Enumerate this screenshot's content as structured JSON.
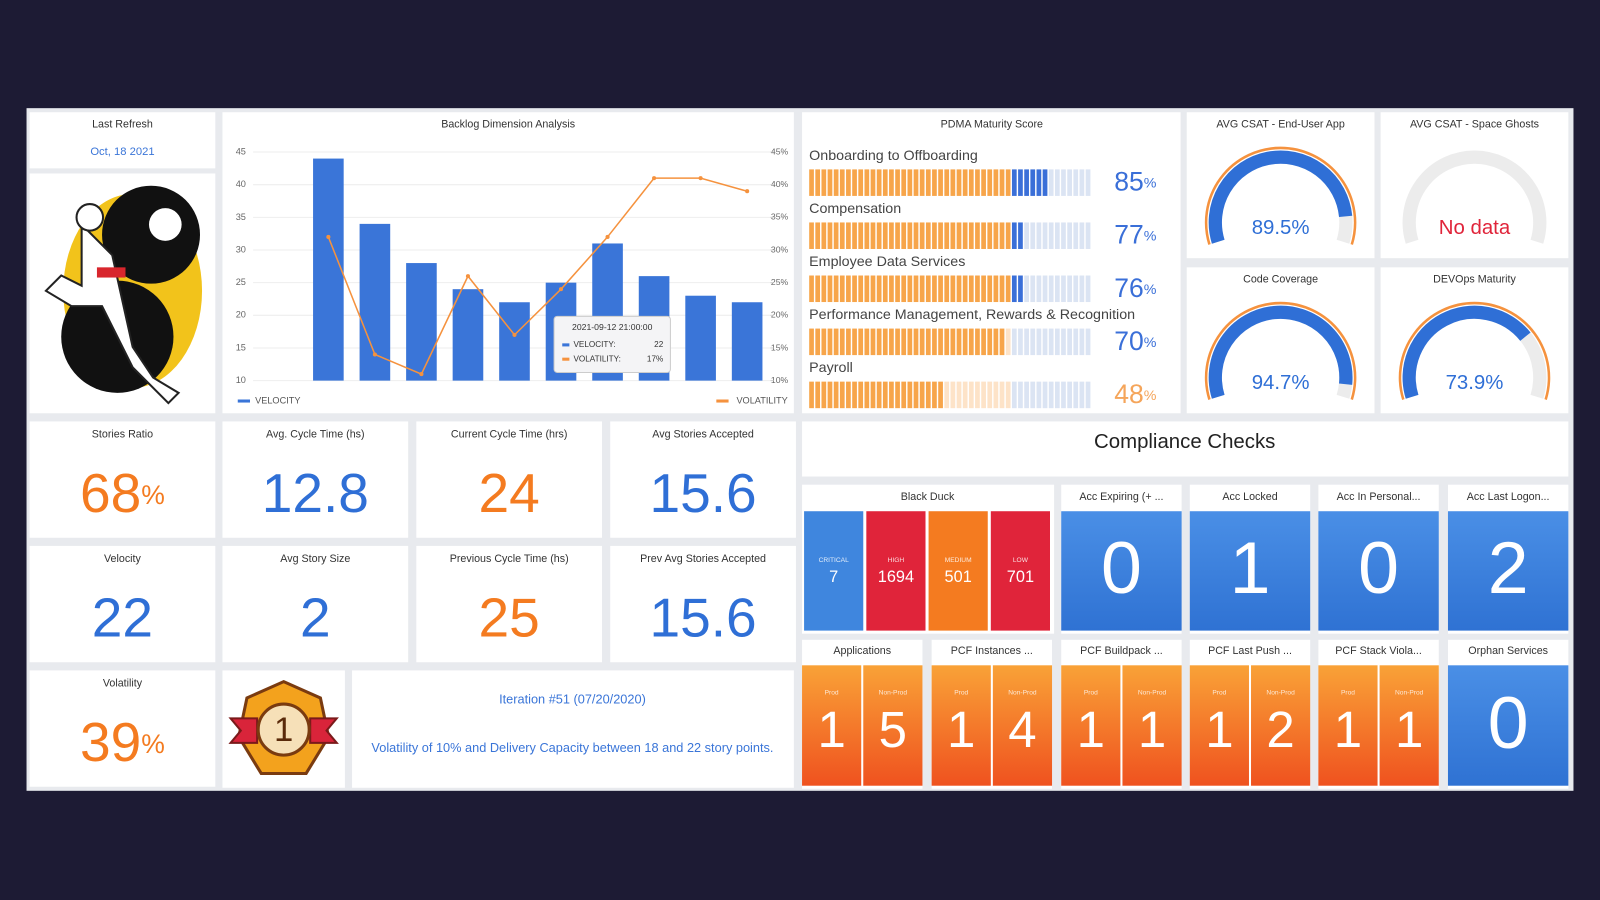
{
  "refresh": {
    "title": "Last Refresh",
    "date": "Oct, 18 2021"
  },
  "chart_data": {
    "type": "bar",
    "title": "Backlog Dimension Analysis",
    "categories": [
      null,
      null,
      null,
      null,
      null,
      null,
      null,
      null,
      null,
      null
    ],
    "series": [
      {
        "name": "VELOCITY",
        "type": "bar",
        "color": "#3a75d8",
        "values": [
          44,
          34,
          28,
          24,
          22,
          25,
          31,
          26,
          23,
          22
        ]
      },
      {
        "name": "VOLATILITY",
        "type": "line",
        "axis": "y2",
        "color": "#f5923e",
        "values": [
          32,
          14,
          11,
          26,
          17,
          24,
          32,
          41,
          41,
          39
        ]
      }
    ],
    "ylim": [
      10,
      45
    ],
    "yticks": [
      10,
      15,
      20,
      25,
      30,
      35,
      40,
      45
    ],
    "y2lim": [
      10,
      45
    ],
    "y2ticks": [
      {
        "value": 10,
        "label": "10%"
      },
      {
        "value": 15,
        "label": "15%"
      },
      {
        "value": 20,
        "label": "20%"
      },
      {
        "value": 25,
        "label": "25%"
      },
      {
        "value": 30,
        "label": "30%"
      },
      {
        "value": 35,
        "label": "35%"
      },
      {
        "value": 40,
        "label": "40%"
      },
      {
        "value": 45,
        "label": "45%"
      }
    ],
    "grid": true,
    "tooltip": {
      "title": "2021-09-12 21:00:00",
      "rows": [
        {
          "name": "VELOCITY:",
          "value": "22"
        },
        {
          "name": "VOLATILITY:",
          "value": "17%"
        }
      ]
    }
  },
  "pdma": {
    "title": "PDMA Maturity Score",
    "unit": "%",
    "items": [
      {
        "name": "Onboarding to Offboarding",
        "value": 85,
        "color": "#3a6fd8"
      },
      {
        "name": "Compensation",
        "value": 77,
        "color": "#3a6fd8"
      },
      {
        "name": "Employee Data Services",
        "value": 76,
        "color": "#3a6fd8"
      },
      {
        "name": "Performance Management, Rewards & Recognition",
        "value": 70,
        "color": "#3a6fd8"
      },
      {
        "name": "Payroll",
        "value": 48,
        "color": "#f5a55a"
      }
    ]
  },
  "gauge_range": [
    0,
    100
  ],
  "gauges": [
    {
      "title": "AVG CSAT - End-User App",
      "value": 89.5,
      "value_label": "89.5%"
    },
    {
      "title": "AVG CSAT - Space Ghosts",
      "value": null,
      "value_label": "No data"
    },
    {
      "title": "Code Coverage",
      "value": 94.7,
      "value_label": "94.7%"
    },
    {
      "title": "DEVOps Maturity",
      "value": 73.9,
      "value_label": "73.9%"
    }
  ],
  "stats": [
    {
      "title": "Stories Ratio",
      "value": 68,
      "unit": "%",
      "color": "#f47b20"
    },
    {
      "title": "Avg. Cycle Time (hs)",
      "value": 12.8,
      "color": "#2f6fd6"
    },
    {
      "title": "Current Cycle Time (hrs)",
      "value": 24,
      "color": "#f47b20"
    },
    {
      "title": "Avg Stories Accepted",
      "value": 15.6,
      "color": "#2f6fd6"
    },
    {
      "title": "Velocity",
      "value": 22,
      "color": "#2f6fd6"
    },
    {
      "title": "Avg Story Size",
      "value": 2,
      "color": "#2f6fd6"
    },
    {
      "title": "Previous Cycle Time (hs)",
      "value": 25,
      "color": "#f47b20"
    },
    {
      "title": "Prev Avg Stories Accepted",
      "value": 15.6,
      "color": "#2f6fd6"
    },
    {
      "title": "Volatility",
      "value": 39,
      "unit": "%",
      "color": "#f47b20"
    }
  ],
  "badge": {
    "label": "1"
  },
  "iteration": {
    "title": "Iteration #51 (07/20/2020)",
    "note": "Volatility of 10% and Delivery Capacity between 18 and 22 story points."
  },
  "compliance": {
    "title": "Compliance Checks",
    "black_duck": {
      "title": "Black Duck",
      "items": [
        {
          "label": "CRITICAL",
          "value": 7,
          "color": "#3f86de"
        },
        {
          "label": "HIGH",
          "value": 1694,
          "color": "#e0243a"
        },
        {
          "label": "MEDIUM",
          "value": 501,
          "color": "#f47b20"
        },
        {
          "label": "LOW",
          "value": 701,
          "color": "#e0243a"
        }
      ]
    },
    "accounts": [
      {
        "title": "Acc Expiring (+ ...",
        "value": 0
      },
      {
        "title": "Acc Locked",
        "value": 1
      },
      {
        "title": "Acc In Personal...",
        "value": 0
      },
      {
        "title": "Acc Last Logon...",
        "value": 2
      }
    ],
    "pcf": [
      {
        "title": "Applications",
        "items": [
          {
            "label": "Prod",
            "value": 1
          },
          {
            "label": "Non-Prod",
            "value": 5
          }
        ]
      },
      {
        "title": "PCF Instances ...",
        "items": [
          {
            "label": "Prod",
            "value": 1
          },
          {
            "label": "Non-Prod",
            "value": 4
          }
        ]
      },
      {
        "title": "PCF Buildpack ...",
        "items": [
          {
            "label": "Prod",
            "value": 1
          },
          {
            "label": "Non-Prod",
            "value": 1
          }
        ]
      },
      {
        "title": "PCF Last Push ...",
        "items": [
          {
            "label": "Prod",
            "value": 1
          },
          {
            "label": "Non-Prod",
            "value": 2
          }
        ]
      },
      {
        "title": "PCF Stack Viola...",
        "items": [
          {
            "label": "Prod",
            "value": 1
          },
          {
            "label": "Non-Prod",
            "value": 1
          }
        ]
      }
    ],
    "orphan": {
      "title": "Orphan Services",
      "value": 0
    }
  }
}
